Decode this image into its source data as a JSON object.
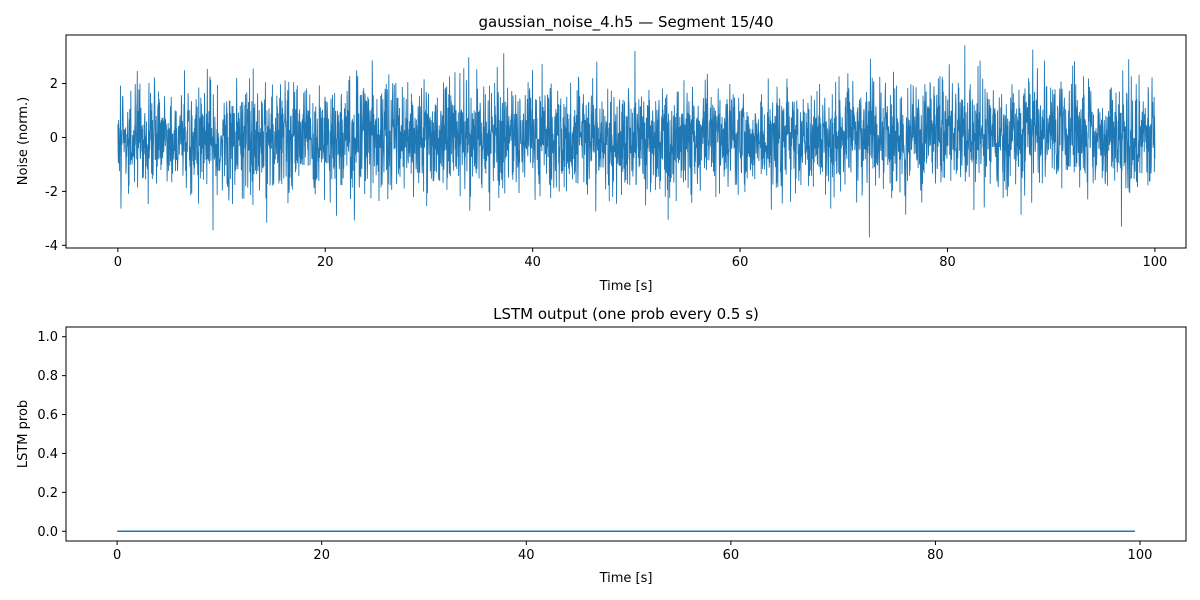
{
  "chart_data": [
    {
      "type": "line",
      "title": "gaussian_noise_4.h5 — Segment 15/40",
      "xlabel": "Time [s]",
      "ylabel": "Noise (norm.)",
      "xlim": [
        -5,
        103
      ],
      "ylim": [
        -4.1,
        3.8
      ],
      "xticks": [
        0,
        20,
        40,
        60,
        80,
        100
      ],
      "yticks": [
        -4,
        -2,
        0,
        2
      ],
      "grid": false,
      "series": [
        {
          "color": "#1f77b4",
          "x_range": [
            0,
            100
          ],
          "distribution": "gaussian",
          "mean": 0,
          "std": 1,
          "min": -3.7,
          "max": 3.6
        }
      ]
    },
    {
      "type": "line",
      "title": "LSTM output (one prob every 0.5 s)",
      "xlabel": "Time [s]",
      "ylabel": "LSTM prob",
      "xlim": [
        -5,
        104.5
      ],
      "ylim": [
        -0.05,
        1.05
      ],
      "xticks": [
        0,
        20,
        40,
        60,
        80,
        100
      ],
      "yticks": [
        0.0,
        0.2,
        0.4,
        0.6,
        0.8,
        1.0
      ],
      "ytick_labels": [
        "0.0",
        "0.2",
        "0.4",
        "0.6",
        "0.8",
        "1.0"
      ],
      "grid": false,
      "series": [
        {
          "color": "#1f77b4",
          "x": [
            0,
            99.5
          ],
          "y": [
            0,
            0
          ]
        }
      ]
    }
  ]
}
